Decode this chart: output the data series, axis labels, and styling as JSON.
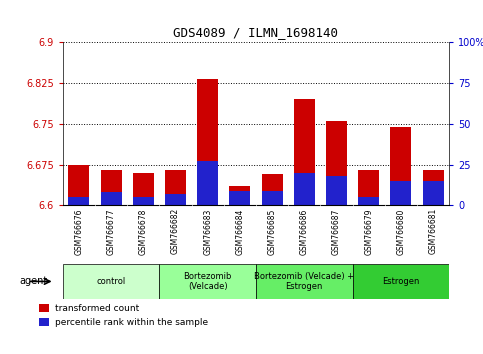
{
  "title": "GDS4089 / ILMN_1698140",
  "samples": [
    "GSM766676",
    "GSM766677",
    "GSM766678",
    "GSM766682",
    "GSM766683",
    "GSM766684",
    "GSM766685",
    "GSM766686",
    "GSM766687",
    "GSM766679",
    "GSM766680",
    "GSM766681"
  ],
  "transformed_count": [
    6.675,
    6.665,
    6.66,
    6.665,
    6.832,
    6.635,
    6.658,
    6.795,
    6.755,
    6.665,
    6.745,
    6.665
  ],
  "percentile_rank": [
    5,
    8,
    5,
    7,
    27,
    9,
    9,
    20,
    18,
    5,
    15,
    15
  ],
  "y_min": 6.6,
  "y_max": 6.9,
  "y_ticks": [
    6.6,
    6.675,
    6.75,
    6.825,
    6.9
  ],
  "y_tick_labels": [
    "6.6",
    "6.675",
    "6.75",
    "6.825",
    "6.9"
  ],
  "y2_ticks": [
    0,
    25,
    50,
    75,
    100
  ],
  "y2_tick_labels": [
    "0",
    "25",
    "50",
    "75",
    "100%"
  ],
  "bar_color": "#cc0000",
  "percentile_color": "#2222cc",
  "bar_base": 6.6,
  "groups": [
    {
      "label": "control",
      "start": 0,
      "end": 3,
      "color": "#ccffcc"
    },
    {
      "label": "Bortezomib\n(Velcade)",
      "start": 3,
      "end": 6,
      "color": "#99ff99"
    },
    {
      "label": "Bortezomib (Velcade) +\nEstrogen",
      "start": 6,
      "end": 9,
      "color": "#66ee66"
    },
    {
      "label": "Estrogen",
      "start": 9,
      "end": 12,
      "color": "#33cc33"
    }
  ],
  "legend_items": [
    {
      "color": "#cc0000",
      "label": "transformed count"
    },
    {
      "color": "#2222cc",
      "label": "percentile rank within the sample"
    }
  ],
  "agent_label": "agent",
  "left_axis_color": "#cc0000",
  "right_axis_color": "#0000cc",
  "background_color": "#ffffff",
  "plot_bg_color": "#ffffff",
  "grid_color": "#000000",
  "tick_area_bg": "#cccccc"
}
